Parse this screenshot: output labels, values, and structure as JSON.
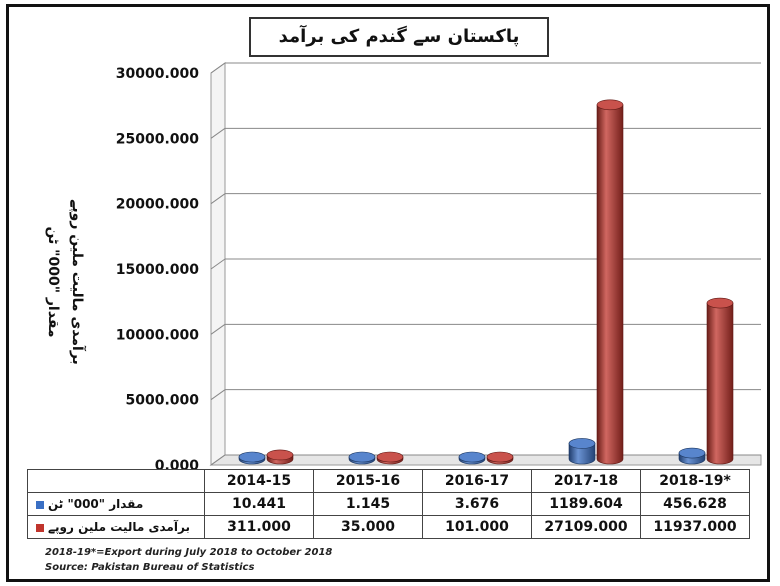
{
  "chart_data": {
    "type": "bar",
    "title": "پاکستان سے گندم کی برآمد",
    "ylabel_lines": [
      "مقدار \"000\" ٹن",
      "برآمدی مالیت ملین روپے"
    ],
    "categories": [
      "2014-15",
      "2015-16",
      "2016-17",
      "2017-18",
      "2018-19*"
    ],
    "ylim": [
      0,
      30000
    ],
    "yticks": [
      {
        "value": 0,
        "label": "0.000"
      },
      {
        "value": 5000,
        "label": "5000.000"
      },
      {
        "value": 10000,
        "label": "10000.000"
      },
      {
        "value": 15000,
        "label": "15000.000"
      },
      {
        "value": 20000,
        "label": "20000.000"
      },
      {
        "value": 25000,
        "label": "25000.000"
      },
      {
        "value": 30000,
        "label": "30000.000"
      }
    ],
    "grid": true,
    "legend_placement": "data-table",
    "series": [
      {
        "name": "مقدار \"000\" ٹن",
        "color": "#3a6fc4",
        "values": [
          10.441,
          1.145,
          3.676,
          1189.604,
          456.628
        ],
        "labels": [
          "10.441",
          "1.145",
          "3.676",
          "1189.604",
          "456.628"
        ]
      },
      {
        "name": "برآمدی مالیت ملین روپے",
        "color": "#c0342c",
        "values": [
          311,
          35,
          101,
          27109,
          11937
        ],
        "labels": [
          "311.000",
          "35.000",
          "101.000",
          "27109.000",
          "11937.000"
        ]
      }
    ]
  },
  "notes": [
    "2018-19*=Export during July 2018 to October 2018",
    "Source: Pakistan Bureau of Statistics"
  ]
}
